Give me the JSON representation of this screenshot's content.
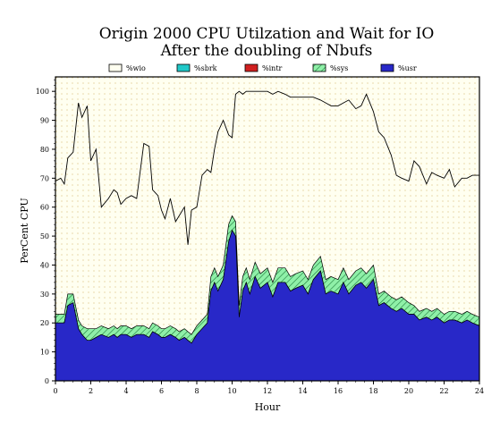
{
  "chart_data": {
    "type": "area",
    "title": "Origin 2000 CPU Utilzation and Wait for IO",
    "subtitle": "After the doubling of Nbufs",
    "xlabel": "Hour",
    "ylabel": "PerCent CPU",
    "xlim": [
      0,
      24
    ],
    "ylim": [
      0,
      105
    ],
    "xticks": [
      "0",
      "2",
      "4",
      "6",
      "8",
      "10",
      "12",
      "14",
      "16",
      "18",
      "20",
      "22",
      "24"
    ],
    "yticks": [
      "0",
      "10",
      "20",
      "30",
      "40",
      "50",
      "60",
      "70",
      "80",
      "90",
      "100"
    ],
    "grid": true,
    "legend_position": "top",
    "stacked": true,
    "legend": [
      {
        "name": "%wio",
        "color": "#fffff0",
        "pattern": "none"
      },
      {
        "name": "%sbrk",
        "color": "#20c8c8",
        "pattern": "none"
      },
      {
        "name": "%intr",
        "color": "#d02020",
        "pattern": "none"
      },
      {
        "name": "%sys",
        "color": "#60e080",
        "pattern": "hatch"
      },
      {
        "name": "%usr",
        "color": "#2828c8",
        "pattern": "none"
      }
    ],
    "x": [
      0,
      0.3,
      0.5,
      0.7,
      1.0,
      1.3,
      1.5,
      1.8,
      2.0,
      2.3,
      2.6,
      3.0,
      3.3,
      3.5,
      3.7,
      4.0,
      4.3,
      4.6,
      5.0,
      5.3,
      5.5,
      5.8,
      6.0,
      6.2,
      6.5,
      6.8,
      7.0,
      7.3,
      7.5,
      7.7,
      8.0,
      8.3,
      8.6,
      8.8,
      9.0,
      9.2,
      9.5,
      9.8,
      10.0,
      10.2,
      10.4,
      10.6,
      10.8,
      11.0,
      11.3,
      11.6,
      12.0,
      12.3,
      12.6,
      13.0,
      13.3,
      13.6,
      14.0,
      14.3,
      14.6,
      15.0,
      15.3,
      15.6,
      16.0,
      16.3,
      16.6,
      17.0,
      17.3,
      17.6,
      18.0,
      18.3,
      18.6,
      19.0,
      19.3,
      19.6,
      20.0,
      20.3,
      20.6,
      21.0,
      21.3,
      21.6,
      22.0,
      22.3,
      22.6,
      23.0,
      23.3,
      23.6,
      24.0
    ],
    "series": [
      {
        "name": "%usr",
        "values": [
          20,
          20,
          20,
          26,
          27,
          18,
          16,
          14,
          14,
          15,
          16,
          15,
          16,
          15,
          16,
          16,
          15,
          16,
          16,
          15,
          17,
          16,
          15,
          15,
          16,
          15,
          14,
          15,
          14,
          13,
          16,
          18,
          20,
          31,
          34,
          31,
          35,
          48,
          52,
          50,
          22,
          31,
          34,
          30,
          36,
          32,
          34,
          29,
          34,
          34,
          31,
          32,
          33,
          30,
          35,
          38,
          30,
          31,
          30,
          34,
          30,
          33,
          34,
          32,
          35,
          26,
          27,
          25,
          24,
          25,
          23,
          23,
          21,
          22,
          21,
          22,
          20,
          21,
          21,
          20,
          21,
          20,
          19
        ]
      },
      {
        "name": "%sys",
        "values": [
          3,
          3,
          3,
          4,
          3,
          3,
          3,
          4,
          4,
          3,
          3,
          3,
          3,
          3,
          3,
          3,
          3,
          3,
          3,
          3,
          3,
          3,
          3,
          3,
          3,
          3,
          3,
          3,
          3,
          3,
          3,
          3,
          3,
          5,
          5,
          5,
          5,
          6,
          5,
          5,
          4,
          5,
          5,
          5,
          5,
          5,
          5,
          5,
          5,
          5,
          5,
          5,
          5,
          5,
          5,
          5,
          5,
          5,
          5,
          5,
          5,
          5,
          5,
          5,
          5,
          4,
          4,
          4,
          4,
          4,
          4,
          3,
          3,
          3,
          3,
          3,
          3,
          3,
          3,
          3,
          3,
          3,
          3
        ]
      },
      {
        "name": "%wio",
        "values": [
          46,
          47,
          45,
          47,
          49,
          75,
          72,
          77,
          58,
          62,
          41,
          45,
          47,
          47,
          42,
          44,
          46,
          44,
          63,
          63,
          46,
          45,
          41,
          38,
          44,
          37,
          40,
          42,
          30,
          43,
          41,
          50,
          50,
          36,
          41,
          50,
          50,
          31,
          27,
          44,
          78,
          63,
          61,
          65,
          59,
          63,
          61,
          65,
          61,
          60,
          62,
          61,
          60,
          63,
          58,
          54,
          61,
          59,
          60,
          57,
          62,
          56,
          56,
          62,
          53,
          56,
          53,
          49,
          43,
          41,
          42,
          50,
          50,
          43,
          48,
          46,
          47,
          49,
          43,
          47,
          46,
          48,
          49
        ]
      }
    ]
  }
}
